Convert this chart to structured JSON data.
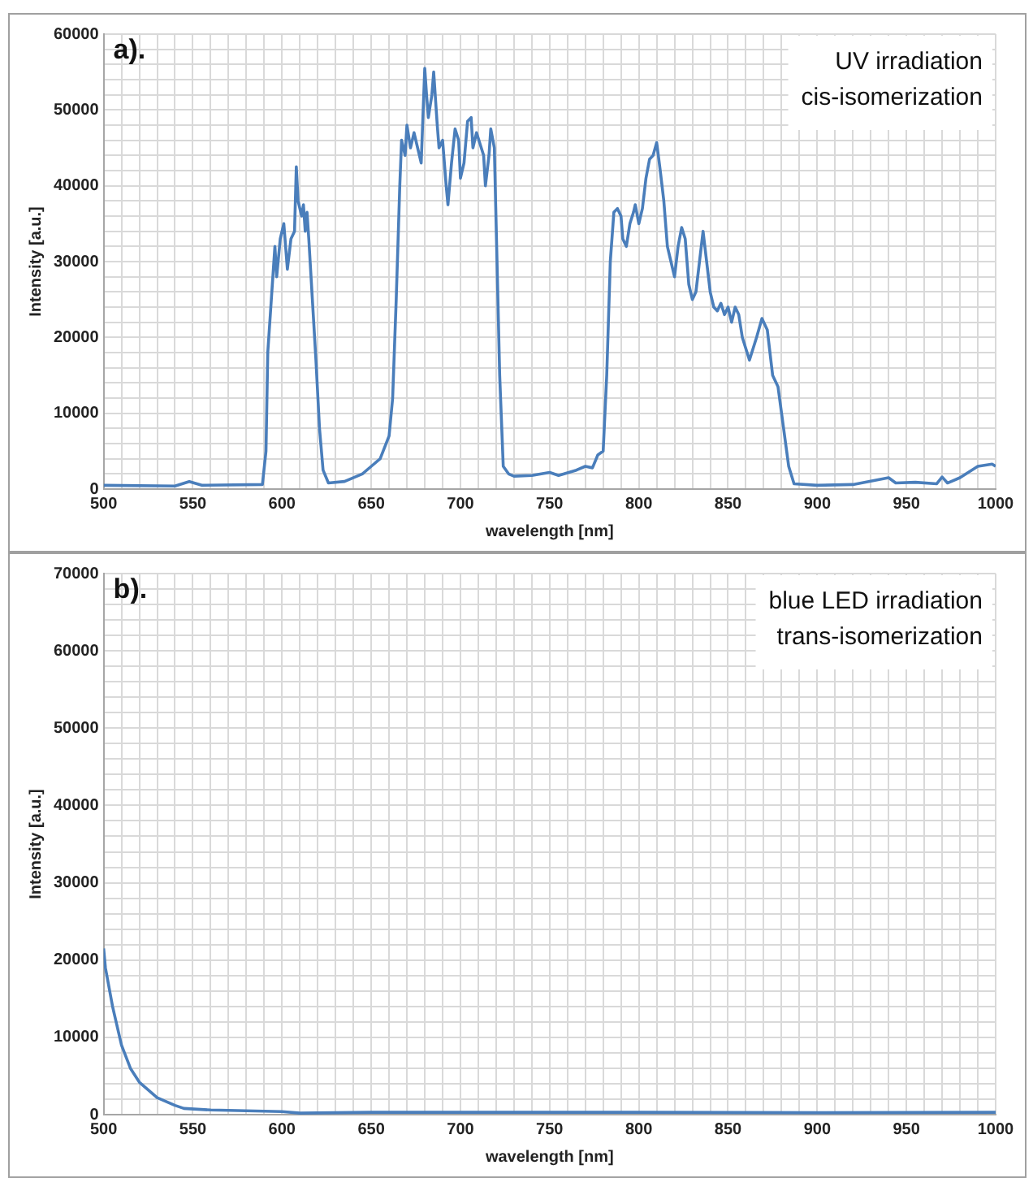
{
  "chart_data": [
    {
      "type": "line",
      "xlabel": "wavelength [nm]",
      "ylabel": "Intensity [a.u.]",
      "annotations": [
        "a).",
        "UV irradiation",
        "cis-isomerization"
      ],
      "grid": true,
      "legend": false,
      "marker": "none",
      "line_style": "solid",
      "xlim": [
        500,
        1000
      ],
      "ylim": [
        0,
        60000
      ],
      "xticks": [
        500,
        {
          "value": 510,
          "label": null
        },
        {
          "value": 520,
          "label": null
        },
        {
          "value": 530,
          "label": null
        },
        {
          "value": 540,
          "label": null
        },
        550,
        {
          "value": 560,
          "label": null
        },
        {
          "value": 570,
          "label": null
        },
        {
          "value": 580,
          "label": null
        },
        {
          "value": 590,
          "label": null
        },
        600,
        {
          "value": 610,
          "label": null
        },
        {
          "value": 620,
          "label": null
        },
        {
          "value": 630,
          "label": null
        },
        {
          "value": 640,
          "label": null
        },
        650,
        {
          "value": 660,
          "label": null
        },
        {
          "value": 670,
          "label": null
        },
        {
          "value": 680,
          "label": null
        },
        {
          "value": 690,
          "label": null
        },
        700,
        {
          "value": 710,
          "label": null
        },
        {
          "value": 720,
          "label": null
        },
        {
          "value": 730,
          "label": null
        },
        {
          "value": 740,
          "label": null
        },
        750,
        {
          "value": 760,
          "label": null
        },
        {
          "value": 770,
          "label": null
        },
        {
          "value": 780,
          "label": null
        },
        {
          "value": 790,
          "label": null
        },
        800,
        {
          "value": 810,
          "label": null
        },
        {
          "value": 820,
          "label": null
        },
        {
          "value": 830,
          "label": null
        },
        {
          "value": 840,
          "label": null
        },
        850,
        {
          "value": 860,
          "label": null
        },
        {
          "value": 870,
          "label": null
        },
        {
          "value": 880,
          "label": null
        },
        {
          "value": 890,
          "label": null
        },
        900,
        {
          "value": 910,
          "label": null
        },
        {
          "value": 920,
          "label": null
        },
        {
          "value": 930,
          "label": null
        },
        {
          "value": 940,
          "label": null
        },
        950,
        {
          "value": 960,
          "label": null
        },
        {
          "value": 970,
          "label": null
        },
        {
          "value": 980,
          "label": null
        },
        {
          "value": 990,
          "label": null
        },
        1000
      ],
      "yticks": [
        0,
        {
          "value": 2000,
          "label": null
        },
        {
          "value": 4000,
          "label": null
        },
        {
          "value": 6000,
          "label": null
        },
        {
          "value": 8000,
          "label": null
        },
        10000,
        {
          "value": 12000,
          "label": null
        },
        {
          "value": 14000,
          "label": null
        },
        {
          "value": 16000,
          "label": null
        },
        {
          "value": 18000,
          "label": null
        },
        20000,
        {
          "value": 22000,
          "label": null
        },
        {
          "value": 24000,
          "label": null
        },
        {
          "value": 26000,
          "label": null
        },
        {
          "value": 28000,
          "label": null
        },
        30000,
        {
          "value": 32000,
          "label": null
        },
        {
          "value": 34000,
          "label": null
        },
        {
          "value": 36000,
          "label": null
        },
        {
          "value": 38000,
          "label": null
        },
        40000,
        {
          "value": 42000,
          "label": null
        },
        {
          "value": 44000,
          "label": null
        },
        {
          "value": 46000,
          "label": null
        },
        {
          "value": 48000,
          "label": null
        },
        50000,
        {
          "value": 52000,
          "label": null
        },
        {
          "value": 54000,
          "label": null
        },
        {
          "value": 56000,
          "label": null
        },
        {
          "value": 58000,
          "label": null
        },
        60000
      ],
      "series": [
        {
          "color": "#4a7ebb",
          "x": [
            500,
            540,
            548,
            555,
            589,
            591,
            592,
            594,
            596,
            597,
            599,
            601,
            603,
            605,
            607,
            608,
            609,
            611,
            612,
            613,
            614,
            615,
            617,
            619,
            621,
            623,
            626,
            635,
            645,
            650,
            655,
            660,
            662,
            664,
            666,
            667,
            669,
            670,
            672,
            674,
            676,
            678,
            680,
            681,
            682,
            684,
            685,
            687,
            688,
            690,
            692,
            693,
            695,
            697,
            699,
            700,
            702,
            704,
            706,
            707,
            709,
            711,
            713,
            714,
            716,
            717,
            719,
            720,
            722,
            724,
            727,
            730,
            740,
            750,
            755,
            765,
            770,
            774,
            777,
            780,
            782,
            784,
            786,
            788,
            790,
            791,
            793,
            795,
            797,
            798,
            800,
            802,
            804,
            806,
            808,
            810,
            812,
            814,
            816,
            818,
            820,
            822,
            824,
            826,
            828,
            830,
            832,
            834,
            836,
            838,
            840,
            842,
            844,
            846,
            848,
            850,
            852,
            854,
            856,
            858,
            862,
            866,
            869,
            872,
            875,
            878,
            880,
            884,
            887,
            900,
            920,
            940,
            944,
            955,
            967,
            970,
            973,
            980,
            990,
            998,
            1000
          ],
          "values": [
            500,
            400,
            1000,
            500,
            600,
            5000,
            18000,
            25000,
            32000,
            28000,
            33000,
            35000,
            29000,
            33000,
            34000,
            42500,
            38000,
            36000,
            37500,
            34000,
            36500,
            33000,
            25000,
            17000,
            8000,
            2500,
            800,
            1000,
            2000,
            3000,
            4000,
            7000,
            12000,
            25000,
            40000,
            46000,
            44000,
            48000,
            45000,
            47000,
            45000,
            43000,
            55500,
            52000,
            49000,
            52000,
            55000,
            48000,
            45000,
            46000,
            40000,
            37500,
            43000,
            47500,
            46000,
            41000,
            43000,
            48500,
            49000,
            45000,
            47000,
            45500,
            44000,
            40000,
            44000,
            47500,
            45000,
            35000,
            15000,
            3000,
            2000,
            1700,
            1800,
            2200,
            1800,
            2500,
            3000,
            2800,
            4500,
            5000,
            15000,
            30000,
            36500,
            37000,
            36000,
            33000,
            32000,
            35000,
            36500,
            37500,
            35000,
            37000,
            41000,
            43500,
            44000,
            45700,
            42000,
            38000,
            32000,
            30000,
            28000,
            32000,
            34500,
            33000,
            27000,
            25000,
            26000,
            30000,
            34000,
            30000,
            26000,
            24000,
            23500,
            24500,
            23000,
            24000,
            22000,
            24000,
            23000,
            20000,
            17000,
            20000,
            22500,
            21000,
            15000,
            13500,
            10000,
            3000,
            700,
            500,
            600,
            1500,
            800,
            900,
            700,
            1600,
            800,
            1500,
            3000,
            3300,
            3000
          ]
        }
      ]
    },
    {
      "type": "line",
      "xlabel": "wavelength [nm]",
      "ylabel": "Intensity [a.u.]",
      "annotations": [
        "b).",
        "blue LED irradiation",
        "trans-isomerization"
      ],
      "grid": true,
      "legend": false,
      "marker": "none",
      "line_style": "solid",
      "xlim": [
        500,
        1000
      ],
      "ylim": [
        0,
        70000
      ],
      "xticks": [
        500,
        {
          "value": 510,
          "label": null
        },
        {
          "value": 520,
          "label": null
        },
        {
          "value": 530,
          "label": null
        },
        {
          "value": 540,
          "label": null
        },
        550,
        {
          "value": 560,
          "label": null
        },
        {
          "value": 570,
          "label": null
        },
        {
          "value": 580,
          "label": null
        },
        {
          "value": 590,
          "label": null
        },
        600,
        {
          "value": 610,
          "label": null
        },
        {
          "value": 620,
          "label": null
        },
        {
          "value": 630,
          "label": null
        },
        {
          "value": 640,
          "label": null
        },
        650,
        {
          "value": 660,
          "label": null
        },
        {
          "value": 670,
          "label": null
        },
        {
          "value": 680,
          "label": null
        },
        {
          "value": 690,
          "label": null
        },
        700,
        {
          "value": 710,
          "label": null
        },
        {
          "value": 720,
          "label": null
        },
        {
          "value": 730,
          "label": null
        },
        {
          "value": 740,
          "label": null
        },
        750,
        {
          "value": 760,
          "label": null
        },
        {
          "value": 770,
          "label": null
        },
        {
          "value": 780,
          "label": null
        },
        {
          "value": 790,
          "label": null
        },
        800,
        {
          "value": 810,
          "label": null
        },
        {
          "value": 820,
          "label": null
        },
        {
          "value": 830,
          "label": null
        },
        {
          "value": 840,
          "label": null
        },
        850,
        {
          "value": 860,
          "label": null
        },
        {
          "value": 870,
          "label": null
        },
        {
          "value": 880,
          "label": null
        },
        {
          "value": 890,
          "label": null
        },
        900,
        {
          "value": 910,
          "label": null
        },
        {
          "value": 920,
          "label": null
        },
        {
          "value": 930,
          "label": null
        },
        {
          "value": 940,
          "label": null
        },
        950,
        {
          "value": 960,
          "label": null
        },
        {
          "value": 970,
          "label": null
        },
        {
          "value": 980,
          "label": null
        },
        {
          "value": 990,
          "label": null
        },
        1000
      ],
      "yticks": [
        0,
        {
          "value": 2000,
          "label": null
        },
        {
          "value": 4000,
          "label": null
        },
        {
          "value": 6000,
          "label": null
        },
        {
          "value": 8000,
          "label": null
        },
        10000,
        {
          "value": 12000,
          "label": null
        },
        {
          "value": 14000,
          "label": null
        },
        {
          "value": 16000,
          "label": null
        },
        {
          "value": 18000,
          "label": null
        },
        20000,
        {
          "value": 22000,
          "label": null
        },
        {
          "value": 24000,
          "label": null
        },
        {
          "value": 26000,
          "label": null
        },
        {
          "value": 28000,
          "label": null
        },
        30000,
        {
          "value": 32000,
          "label": null
        },
        {
          "value": 34000,
          "label": null
        },
        {
          "value": 36000,
          "label": null
        },
        {
          "value": 38000,
          "label": null
        },
        40000,
        {
          "value": 42000,
          "label": null
        },
        {
          "value": 44000,
          "label": null
        },
        {
          "value": 46000,
          "label": null
        },
        {
          "value": 48000,
          "label": null
        },
        50000,
        {
          "value": 52000,
          "label": null
        },
        {
          "value": 54000,
          "label": null
        },
        {
          "value": 56000,
          "label": null
        },
        {
          "value": 58000,
          "label": null
        },
        60000,
        {
          "value": 62000,
          "label": null
        },
        {
          "value": 64000,
          "label": null
        },
        {
          "value": 66000,
          "label": null
        },
        {
          "value": 68000,
          "label": null
        },
        70000
      ],
      "series": [
        {
          "color": "#4a7ebb",
          "x": [
            500,
            501,
            505,
            510,
            515,
            520,
            530,
            540,
            545,
            560,
            600,
            610,
            650,
            700,
            800,
            900,
            1000
          ],
          "values": [
            21500,
            19000,
            14000,
            9000,
            6000,
            4200,
            2200,
            1200,
            800,
            600,
            400,
            200,
            300,
            300,
            300,
            250,
            300
          ]
        }
      ]
    }
  ]
}
